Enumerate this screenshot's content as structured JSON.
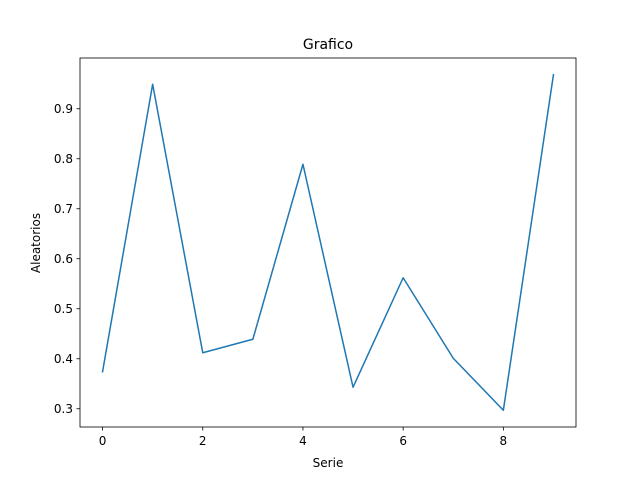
{
  "chart_data": {
    "type": "line",
    "title": "Grafico",
    "xlabel": "Serie",
    "ylabel": "Aleatorios",
    "x": [
      0,
      1,
      2,
      3,
      4,
      5,
      6,
      7,
      8,
      9
    ],
    "series": [
      {
        "values": [
          0.374,
          0.949,
          0.412,
          0.439,
          0.789,
          0.343,
          0.562,
          0.401,
          0.297,
          0.968
        ]
      }
    ],
    "xlim": [
      -0.45,
      9.45
    ],
    "ylim": [
      0.2635,
      1.0015
    ],
    "xticks": [
      0,
      2,
      4,
      6,
      8
    ],
    "yticks": [
      0.3,
      0.4,
      0.5,
      0.6,
      0.7,
      0.8,
      0.9
    ],
    "xtick_labels": [
      "0",
      "2",
      "4",
      "6",
      "8"
    ],
    "ytick_labels": [
      "0.3",
      "0.4",
      "0.5",
      "0.6",
      "0.7",
      "0.8",
      "0.9"
    ],
    "grid": false,
    "legend": "none",
    "line_color": "#1f77b4",
    "axis_color": "#000000"
  }
}
